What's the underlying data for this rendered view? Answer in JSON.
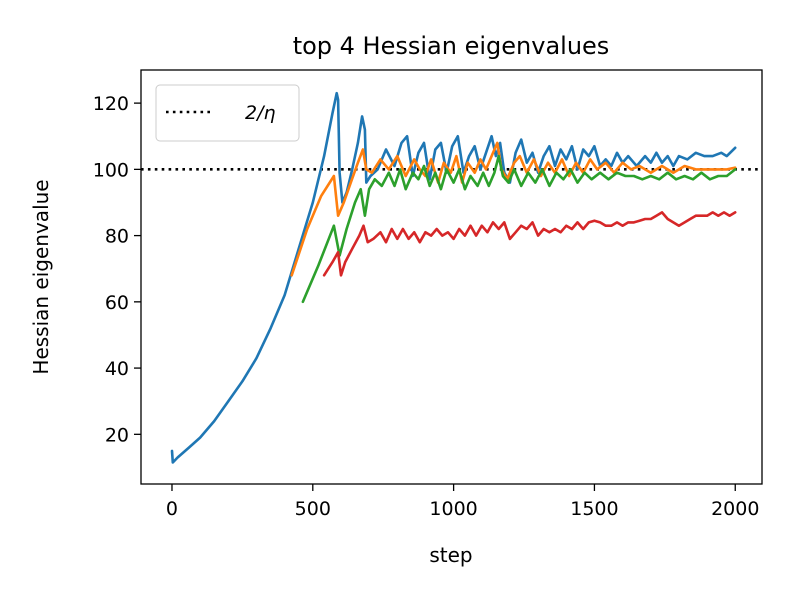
{
  "chart_data": {
    "type": "line",
    "title": "top 4 Hessian eigenvalues",
    "xlabel": "step",
    "ylabel": "Hessian eigenvalue",
    "xlim": [
      -110,
      2095
    ],
    "ylim": [
      5,
      130
    ],
    "xticks": [
      0,
      500,
      1000,
      1500,
      2000
    ],
    "yticks": [
      20,
      40,
      60,
      80,
      100,
      120
    ],
    "grid": false,
    "legend_position": "top-left",
    "reference_line": {
      "label": "2/η",
      "y": 100,
      "style": "dotted",
      "color": "#000000"
    },
    "series": [
      {
        "color": "#1f77b4",
        "points": [
          [
            0,
            15
          ],
          [
            3,
            11.5
          ],
          [
            20,
            13
          ],
          [
            60,
            16
          ],
          [
            100,
            19
          ],
          [
            150,
            24
          ],
          [
            200,
            30
          ],
          [
            250,
            36
          ],
          [
            300,
            43
          ],
          [
            350,
            52
          ],
          [
            400,
            62
          ],
          [
            450,
            76
          ],
          [
            500,
            90
          ],
          [
            540,
            104
          ],
          [
            570,
            117
          ],
          [
            585,
            123
          ],
          [
            590,
            121
          ],
          [
            595,
            99
          ],
          [
            605,
            90
          ],
          [
            620,
            93
          ],
          [
            640,
            100
          ],
          [
            660,
            108
          ],
          [
            675,
            116
          ],
          [
            685,
            112
          ],
          [
            690,
            96
          ],
          [
            705,
            98
          ],
          [
            730,
            100
          ],
          [
            760,
            106
          ],
          [
            790,
            101
          ],
          [
            815,
            108
          ],
          [
            835,
            110
          ],
          [
            855,
            98
          ],
          [
            875,
            105
          ],
          [
            895,
            108
          ],
          [
            915,
            97
          ],
          [
            935,
            106
          ],
          [
            955,
            108
          ],
          [
            975,
            99
          ],
          [
            995,
            107
          ],
          [
            1015,
            110
          ],
          [
            1035,
            99
          ],
          [
            1055,
            104
          ],
          [
            1075,
            107
          ],
          [
            1095,
            100
          ],
          [
            1115,
            105
          ],
          [
            1135,
            110
          ],
          [
            1150,
            104
          ],
          [
            1165,
            108
          ],
          [
            1180,
            99
          ],
          [
            1200,
            96
          ],
          [
            1220,
            105
          ],
          [
            1240,
            109
          ],
          [
            1260,
            102
          ],
          [
            1280,
            105
          ],
          [
            1300,
            99
          ],
          [
            1320,
            104
          ],
          [
            1340,
            107
          ],
          [
            1360,
            101
          ],
          [
            1380,
            106
          ],
          [
            1400,
            103
          ],
          [
            1420,
            107
          ],
          [
            1440,
            100
          ],
          [
            1460,
            106
          ],
          [
            1480,
            104
          ],
          [
            1500,
            107
          ],
          [
            1520,
            101
          ],
          [
            1540,
            103
          ],
          [
            1560,
            101
          ],
          [
            1580,
            105
          ],
          [
            1600,
            102
          ],
          [
            1620,
            104
          ],
          [
            1650,
            101
          ],
          [
            1680,
            104
          ],
          [
            1700,
            102
          ],
          [
            1720,
            105
          ],
          [
            1740,
            102
          ],
          [
            1760,
            104
          ],
          [
            1780,
            101
          ],
          [
            1800,
            104
          ],
          [
            1830,
            103
          ],
          [
            1860,
            105
          ],
          [
            1890,
            104
          ],
          [
            1920,
            104
          ],
          [
            1950,
            105
          ],
          [
            1970,
            104
          ],
          [
            2000,
            106.5
          ]
        ]
      },
      {
        "color": "#ff7f0e",
        "points": [
          [
            425,
            68
          ],
          [
            480,
            82
          ],
          [
            530,
            92
          ],
          [
            575,
            98
          ],
          [
            590,
            86
          ],
          [
            610,
            90
          ],
          [
            635,
            96
          ],
          [
            660,
            102
          ],
          [
            678,
            106
          ],
          [
            690,
            100
          ],
          [
            710,
            99
          ],
          [
            740,
            103
          ],
          [
            770,
            100
          ],
          [
            800,
            104
          ],
          [
            830,
            98
          ],
          [
            860,
            103
          ],
          [
            880,
            100
          ],
          [
            900,
            98
          ],
          [
            920,
            103
          ],
          [
            945,
            96
          ],
          [
            965,
            102
          ],
          [
            990,
            99
          ],
          [
            1010,
            104
          ],
          [
            1030,
            96
          ],
          [
            1050,
            102
          ],
          [
            1075,
            99
          ],
          [
            1095,
            103
          ],
          [
            1115,
            100
          ],
          [
            1135,
            104
          ],
          [
            1155,
            108
          ],
          [
            1170,
            100
          ],
          [
            1190,
            97
          ],
          [
            1215,
            102
          ],
          [
            1235,
            104
          ],
          [
            1260,
            99
          ],
          [
            1285,
            103
          ],
          [
            1310,
            98
          ],
          [
            1335,
            102
          ],
          [
            1360,
            99
          ],
          [
            1385,
            103
          ],
          [
            1410,
            98
          ],
          [
            1435,
            102
          ],
          [
            1460,
            99
          ],
          [
            1485,
            103
          ],
          [
            1510,
            100
          ],
          [
            1540,
            102
          ],
          [
            1570,
            99
          ],
          [
            1600,
            102
          ],
          [
            1630,
            100
          ],
          [
            1660,
            101
          ],
          [
            1700,
            99
          ],
          [
            1740,
            101
          ],
          [
            1780,
            99
          ],
          [
            1820,
            101
          ],
          [
            1860,
            100
          ],
          [
            1900,
            100
          ],
          [
            1940,
            100
          ],
          [
            1970,
            100
          ],
          [
            2000,
            100.5
          ]
        ]
      },
      {
        "color": "#2ca02c",
        "points": [
          [
            465,
            60
          ],
          [
            520,
            71
          ],
          [
            575,
            83
          ],
          [
            595,
            74
          ],
          [
            620,
            82
          ],
          [
            650,
            90
          ],
          [
            670,
            94
          ],
          [
            685,
            86
          ],
          [
            700,
            94
          ],
          [
            720,
            97
          ],
          [
            745,
            95
          ],
          [
            770,
            99
          ],
          [
            790,
            95
          ],
          [
            810,
            100
          ],
          [
            830,
            94
          ],
          [
            855,
            99
          ],
          [
            875,
            97
          ],
          [
            895,
            101
          ],
          [
            915,
            95
          ],
          [
            935,
            99
          ],
          [
            955,
            94
          ],
          [
            975,
            100
          ],
          [
            1000,
            96
          ],
          [
            1020,
            100
          ],
          [
            1040,
            94
          ],
          [
            1060,
            98
          ],
          [
            1085,
            95
          ],
          [
            1105,
            99
          ],
          [
            1125,
            95
          ],
          [
            1145,
            99
          ],
          [
            1160,
            104
          ],
          [
            1175,
            98
          ],
          [
            1195,
            96
          ],
          [
            1215,
            100
          ],
          [
            1240,
            95
          ],
          [
            1265,
            99
          ],
          [
            1290,
            96
          ],
          [
            1315,
            100
          ],
          [
            1340,
            95
          ],
          [
            1365,
            99
          ],
          [
            1390,
            97
          ],
          [
            1415,
            100
          ],
          [
            1440,
            96
          ],
          [
            1465,
            99
          ],
          [
            1490,
            97
          ],
          [
            1520,
            99
          ],
          [
            1550,
            97
          ],
          [
            1580,
            99
          ],
          [
            1610,
            98
          ],
          [
            1640,
            98
          ],
          [
            1670,
            97
          ],
          [
            1700,
            98
          ],
          [
            1730,
            97
          ],
          [
            1760,
            99
          ],
          [
            1790,
            97
          ],
          [
            1820,
            98
          ],
          [
            1850,
            97
          ],
          [
            1880,
            99
          ],
          [
            1910,
            97
          ],
          [
            1940,
            98
          ],
          [
            1970,
            98
          ],
          [
            2000,
            100
          ]
        ]
      },
      {
        "color": "#d62728",
        "points": [
          [
            540,
            68
          ],
          [
            570,
            72
          ],
          [
            590,
            75
          ],
          [
            600,
            68
          ],
          [
            615,
            72
          ],
          [
            640,
            76
          ],
          [
            665,
            80
          ],
          [
            680,
            83
          ],
          [
            695,
            78
          ],
          [
            715,
            79
          ],
          [
            740,
            81
          ],
          [
            760,
            78
          ],
          [
            780,
            82
          ],
          [
            800,
            79
          ],
          [
            820,
            82
          ],
          [
            840,
            79
          ],
          [
            860,
            81
          ],
          [
            880,
            78
          ],
          [
            900,
            81
          ],
          [
            920,
            80
          ],
          [
            940,
            82
          ],
          [
            960,
            80
          ],
          [
            980,
            81
          ],
          [
            1000,
            79
          ],
          [
            1020,
            82
          ],
          [
            1040,
            80
          ],
          [
            1060,
            83
          ],
          [
            1080,
            80
          ],
          [
            1100,
            83
          ],
          [
            1120,
            81
          ],
          [
            1140,
            84
          ],
          [
            1160,
            82
          ],
          [
            1180,
            84
          ],
          [
            1200,
            79
          ],
          [
            1220,
            81
          ],
          [
            1240,
            83
          ],
          [
            1260,
            82
          ],
          [
            1280,
            84
          ],
          [
            1300,
            80
          ],
          [
            1320,
            82
          ],
          [
            1340,
            81
          ],
          [
            1360,
            82
          ],
          [
            1380,
            81
          ],
          [
            1400,
            83
          ],
          [
            1420,
            82
          ],
          [
            1440,
            84
          ],
          [
            1460,
            82
          ],
          [
            1480,
            84
          ],
          [
            1500,
            84.5
          ],
          [
            1520,
            84
          ],
          [
            1540,
            83
          ],
          [
            1560,
            83
          ],
          [
            1580,
            84
          ],
          [
            1600,
            83
          ],
          [
            1620,
            84
          ],
          [
            1640,
            84
          ],
          [
            1660,
            84.5
          ],
          [
            1680,
            85
          ],
          [
            1700,
            85
          ],
          [
            1720,
            86
          ],
          [
            1740,
            87
          ],
          [
            1760,
            85
          ],
          [
            1780,
            84
          ],
          [
            1800,
            83
          ],
          [
            1820,
            84
          ],
          [
            1840,
            85
          ],
          [
            1860,
            86
          ],
          [
            1880,
            86
          ],
          [
            1900,
            86
          ],
          [
            1920,
            87
          ],
          [
            1940,
            86
          ],
          [
            1960,
            87
          ],
          [
            1980,
            86
          ],
          [
            2000,
            87
          ]
        ]
      }
    ]
  }
}
